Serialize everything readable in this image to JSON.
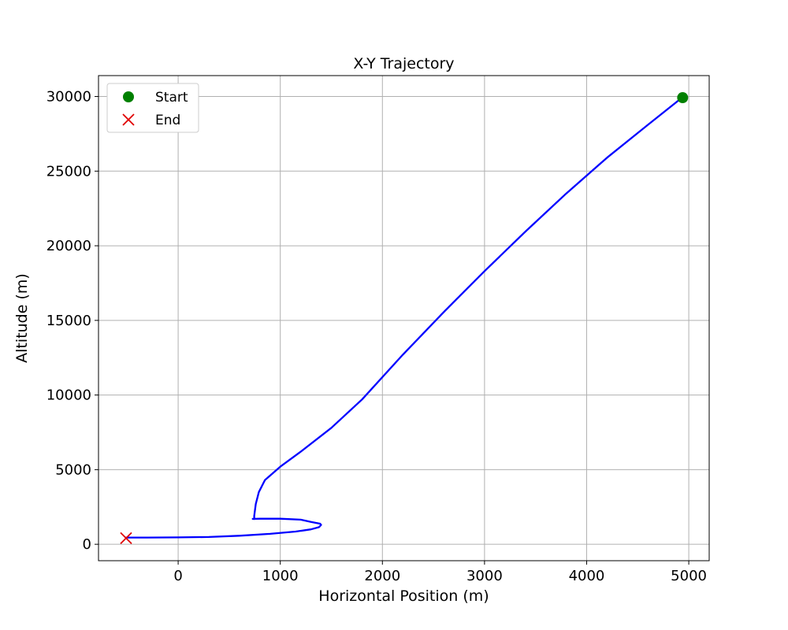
{
  "chart_data": {
    "type": "line",
    "title": "X-Y Trajectory",
    "xlabel": "Horizontal Position (m)",
    "ylabel": "Altitude (m)",
    "xlim": [
      -780,
      5200
    ],
    "ylim": [
      -1100,
      31400
    ],
    "xticks": [
      0,
      1000,
      2000,
      3000,
      4000,
      5000
    ],
    "yticks": [
      0,
      5000,
      10000,
      15000,
      20000,
      25000,
      30000
    ],
    "xtick_labels": [
      "0",
      "1000",
      "2000",
      "3000",
      "4000",
      "5000"
    ],
    "ytick_labels": [
      "0",
      "5000",
      "10000",
      "15000",
      "20000",
      "25000",
      "30000"
    ],
    "grid": true,
    "legend_position": "top-left",
    "series": [
      {
        "color": "#0000ff",
        "x": [
          4930,
          4600,
          4200,
          3800,
          3400,
          3000,
          2600,
          2200,
          1800,
          1500,
          1200,
          1000,
          850,
          790,
          760,
          745,
          745,
          745,
          745,
          730,
          800,
          1000,
          1200,
          1300,
          1390,
          1400,
          1380,
          1300,
          1150,
          900,
          600,
          300,
          0,
          -300,
          -510
        ],
        "y": [
          29900,
          28100,
          25900,
          23500,
          20950,
          18300,
          15550,
          12700,
          9700,
          7800,
          6200,
          5200,
          4300,
          3500,
          2700,
          1900,
          1750,
          1710,
          1690,
          1700,
          1710,
          1710,
          1650,
          1500,
          1380,
          1300,
          1150,
          1000,
          850,
          700,
          570,
          490,
          460,
          450,
          450
        ]
      }
    ],
    "markers": [
      {
        "name": "Start",
        "shape": "circle",
        "color": "#008000",
        "x": 4940,
        "y": 29920
      },
      {
        "name": "End",
        "shape": "x",
        "color": "#e00000",
        "x": -510,
        "y": 410
      }
    ]
  }
}
